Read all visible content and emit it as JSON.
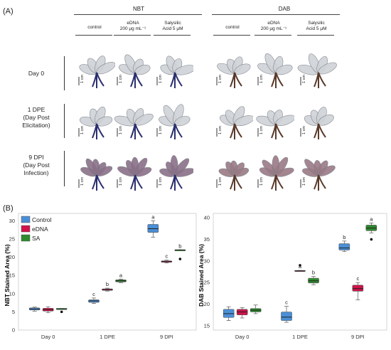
{
  "panel_a_label": "(A)",
  "panel_b_label": "(B)",
  "groups": [
    {
      "title": "NBT",
      "columns": [
        "control",
        "eDNA\n200 µg mL⁻¹",
        "Salysilic\nAcid 5  µM"
      ]
    },
    {
      "title": "DAB",
      "columns": [
        "control",
        "eDNA\n200 µg mL⁻¹",
        "Salysilic\nAcid 5  µM"
      ]
    }
  ],
  "rows": [
    {
      "label": "Day 0"
    },
    {
      "label": "1 DPE\n(Day Post\nElicitation)"
    },
    {
      "label": "9 DPI\n(Day Post\nInfection)"
    }
  ],
  "scale_label": "1 cm",
  "colors": {
    "control": "#4a8fd6",
    "edna": "#d0134a",
    "sa": "#2e8b2e",
    "nbt_stain": "#2a2f6e",
    "dab_stain": "#5a3a2a"
  },
  "chart_data": [
    {
      "type": "box",
      "ylabel": "NBT Stained Area (%)",
      "xlabel": "",
      "categories": [
        "Day 0",
        "1 DPE",
        "9 DPI"
      ],
      "ylim": [
        0,
        32
      ],
      "yticks": [
        0,
        5,
        10,
        15,
        20,
        25,
        30
      ],
      "legend": {
        "position": "top-left",
        "entries": [
          "Control",
          "eDNA",
          "SA"
        ]
      },
      "series": [
        {
          "name": "Control",
          "boxes": [
            {
              "min": 5.2,
              "q1": 5.5,
              "median": 5.8,
              "q3": 6.1,
              "max": 6.3,
              "letter": ""
            },
            {
              "min": 7.3,
              "q1": 7.6,
              "median": 8.0,
              "q3": 8.3,
              "max": 8.8,
              "letter": "c"
            },
            {
              "min": 25.5,
              "q1": 26.8,
              "median": 27.8,
              "q3": 29.0,
              "max": 30.0,
              "letter": "a"
            }
          ]
        },
        {
          "name": "eDNA",
          "boxes": [
            {
              "min": 4.8,
              "q1": 5.2,
              "median": 5.6,
              "q3": 6.0,
              "max": 6.4,
              "letter": ""
            },
            {
              "min": 10.7,
              "q1": 10.9,
              "median": 11.1,
              "q3": 11.3,
              "max": 11.5,
              "letter": "b"
            },
            {
              "min": 18.4,
              "q1": 18.6,
              "median": 18.8,
              "q3": 19.0,
              "max": 19.2,
              "letter": "c"
            }
          ]
        },
        {
          "name": "SA",
          "boxes": [
            {
              "min": 5.9,
              "q1": 5.9,
              "median": 5.9,
              "q3": 5.9,
              "max": 5.9,
              "letter": "",
              "outliers": [
                5.0
              ]
            },
            {
              "min": 13.0,
              "q1": 13.2,
              "median": 13.5,
              "q3": 13.8,
              "max": 14.0,
              "letter": "a"
            },
            {
              "min": 22.0,
              "q1": 22.0,
              "median": 22.0,
              "q3": 22.0,
              "max": 22.0,
              "letter": "b",
              "outliers": [
                19.5
              ]
            }
          ]
        }
      ]
    },
    {
      "type": "box",
      "ylabel": "DAB Stained Area (%)",
      "xlabel": "",
      "categories": [
        "Day 0",
        "1 DPE",
        "9 DPI"
      ],
      "ylim": [
        14,
        41
      ],
      "yticks": [
        15,
        20,
        25,
        30,
        35,
        40
      ],
      "series": [
        {
          "name": "Control",
          "boxes": [
            {
              "min": 16.2,
              "q1": 16.9,
              "median": 17.8,
              "q3": 18.8,
              "max": 19.4,
              "letter": ""
            },
            {
              "min": 15.8,
              "q1": 16.2,
              "median": 17.0,
              "q3": 18.2,
              "max": 19.5,
              "letter": "c"
            },
            {
              "min": 32.2,
              "q1": 32.5,
              "median": 33.0,
              "q3": 34.0,
              "max": 34.6,
              "letter": "b"
            }
          ]
        },
        {
          "name": "eDNA",
          "boxes": [
            {
              "min": 16.8,
              "q1": 17.5,
              "median": 18.2,
              "q3": 18.8,
              "max": 19.2,
              "letter": ""
            },
            {
              "min": 27.6,
              "q1": 27.6,
              "median": 27.7,
              "q3": 27.8,
              "max": 27.8,
              "letter": "a",
              "outliers": [
                29.0
              ]
            },
            {
              "min": 21.0,
              "q1": 23.0,
              "median": 23.6,
              "q3": 24.4,
              "max": 25.0,
              "letter": "c"
            }
          ]
        },
        {
          "name": "SA",
          "boxes": [
            {
              "min": 17.8,
              "q1": 18.2,
              "median": 18.6,
              "q3": 19.0,
              "max": 19.8,
              "letter": ""
            },
            {
              "min": 24.5,
              "q1": 24.9,
              "median": 25.4,
              "q3": 26.0,
              "max": 26.4,
              "letter": "b"
            },
            {
              "min": 36.5,
              "q1": 37.0,
              "median": 37.6,
              "q3": 38.3,
              "max": 38.8,
              "letter": "a",
              "outliers": [
                35.0
              ]
            }
          ]
        }
      ]
    }
  ]
}
